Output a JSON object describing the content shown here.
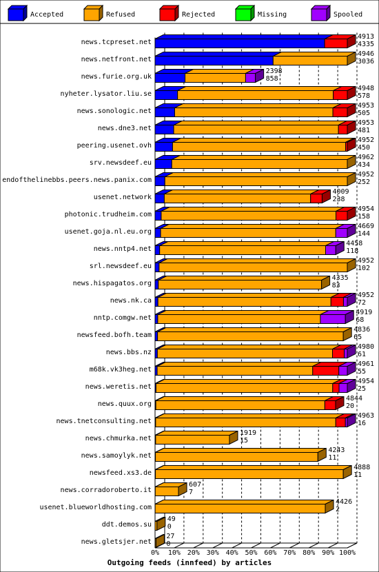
{
  "chart_data": {
    "type": "bar",
    "orientation": "horizontal",
    "stacked": true,
    "normalized_percent": true,
    "title": "Outgoing feeds (innfeed) by articles",
    "xlim": [
      0,
      100
    ],
    "x_ticks": [
      "0%",
      "10%",
      "20%",
      "30%",
      "40%",
      "50%",
      "60%",
      "70%",
      "80%",
      "90%",
      "100%"
    ],
    "grid": true,
    "legend_position": "top",
    "legend": [
      {
        "name": "Accepted",
        "color": "#0000ff"
      },
      {
        "name": "Refused",
        "color": "#ffa500"
      },
      {
        "name": "Rejected",
        "color": "#ff0000"
      },
      {
        "name": "Missing",
        "color": "#00ff00"
      },
      {
        "name": "Spooled",
        "color": "#a000ff"
      }
    ],
    "rows": [
      {
        "label": "news.tcpreset.net",
        "total": "4913",
        "accepted": "4335",
        "segments": [
          88.2,
          0,
          11.8,
          0,
          0
        ]
      },
      {
        "label": "news.netfront.net",
        "total": "4946",
        "accepted": "3036",
        "segments": [
          61.4,
          38.6,
          0,
          0,
          0
        ]
      },
      {
        "label": "news.furie.org.uk",
        "total": "2398",
        "accepted": "858",
        "segments": [
          15.6,
          31.5,
          0,
          0,
          5.1
        ]
      },
      {
        "label": "nyheter.lysator.liu.se",
        "total": "4948",
        "accepted": "578",
        "segments": [
          11.7,
          81.0,
          7.3,
          0,
          0
        ]
      },
      {
        "label": "news.sonologic.net",
        "total": "4953",
        "accepted": "505",
        "segments": [
          10.2,
          82.3,
          7.5,
          0,
          0
        ]
      },
      {
        "label": "news.dne3.net",
        "total": "4953",
        "accepted": "481",
        "segments": [
          9.7,
          85.7,
          4.6,
          0,
          0
        ]
      },
      {
        "label": "peering.usenet.ovh",
        "total": "4952",
        "accepted": "450",
        "segments": [
          9.1,
          90.0,
          0.9,
          0,
          0
        ]
      },
      {
        "label": "srv.newsdeef.eu",
        "total": "4962",
        "accepted": "434",
        "segments": [
          8.7,
          91.3,
          0,
          0,
          0
        ]
      },
      {
        "label": "endofthelinebbs.peers.news.panix.com",
        "total": "4952",
        "accepted": "252",
        "segments": [
          5.1,
          94.9,
          0,
          0,
          0
        ]
      },
      {
        "label": "usenet.network",
        "total": "4009",
        "accepted": "238",
        "segments": [
          4.8,
          76.1,
          6.0,
          0,
          0
        ]
      },
      {
        "label": "photonic.trudheim.com",
        "total": "4954",
        "accepted": "158",
        "segments": [
          3.2,
          90.9,
          5.9,
          0,
          0
        ]
      },
      {
        "label": "usenet.goja.nl.eu.org",
        "total": "4669",
        "accepted": "144",
        "segments": [
          2.9,
          91.1,
          0,
          0,
          6.0
        ]
      },
      {
        "label": "news.nntp4.net",
        "total": "4458",
        "accepted": "118",
        "segments": [
          2.4,
          86.3,
          0,
          0,
          5.3
        ]
      },
      {
        "label": "srl.newsdeef.eu",
        "total": "4952",
        "accepted": "102",
        "segments": [
          2.1,
          97.9,
          0,
          0,
          0
        ]
      },
      {
        "label": "news.hispagatos.org",
        "total": "4335",
        "accepted": "83",
        "segments": [
          1.7,
          84.9,
          0,
          0,
          0
        ]
      },
      {
        "label": "news.nk.ca",
        "total": "4952",
        "accepted": "72",
        "segments": [
          1.5,
          90.0,
          6.5,
          0,
          2.0
        ]
      },
      {
        "label": "nntp.comgw.net",
        "total": "4919",
        "accepted": "68",
        "segments": [
          1.4,
          84.6,
          0,
          0,
          13.0
        ]
      },
      {
        "label": "newsfeed.bofh.team",
        "total": "4836",
        "accepted": "65",
        "segments": [
          1.3,
          96.6,
          0,
          0,
          0
        ]
      },
      {
        "label": "news.bbs.nz",
        "total": "4980",
        "accepted": "61",
        "segments": [
          1.2,
          91.1,
          6.1,
          0,
          1.6
        ]
      },
      {
        "label": "m68k.vk3heg.net",
        "total": "4961",
        "accepted": "55",
        "segments": [
          1.1,
          80.9,
          13.6,
          0,
          4.4
        ]
      },
      {
        "label": "news.weretis.net",
        "total": "4954",
        "accepted": "25",
        "segments": [
          0.5,
          91.9,
          3.3,
          0,
          4.3
        ]
      },
      {
        "label": "news.quux.org",
        "total": "4844",
        "accepted": "20",
        "segments": [
          0.4,
          87.9,
          5.6,
          0,
          0
        ]
      },
      {
        "label": "news.tnetconsulting.net",
        "total": "4963",
        "accepted": "16",
        "segments": [
          0.3,
          93.7,
          5.0,
          0,
          1.0
        ]
      },
      {
        "label": "news.chmurka.net",
        "total": "1919",
        "accepted": "15",
        "segments": [
          0.3,
          38.4,
          0,
          0,
          0
        ]
      },
      {
        "label": "news.samoylyk.net",
        "total": "4243",
        "accepted": "11",
        "segments": [
          0.2,
          84.5,
          0,
          0,
          0
        ]
      },
      {
        "label": "newsfeed.xs3.de",
        "total": "4888",
        "accepted": "11",
        "segments": [
          0.2,
          97.7,
          0,
          0,
          0
        ]
      },
      {
        "label": "news.corradoroberto.it",
        "total": "607",
        "accepted": "7",
        "segments": [
          0.1,
          12.1,
          0,
          0,
          0
        ]
      },
      {
        "label": "usenet.blueworldhosting.com",
        "total": "4426",
        "accepted": "2",
        "segments": [
          0.04,
          88.5,
          0,
          0,
          0
        ]
      },
      {
        "label": "ddt.demos.su",
        "total": "49",
        "accepted": "0",
        "segments": [
          0,
          1.0,
          0,
          0,
          0
        ]
      },
      {
        "label": "news.gletsjer.net",
        "total": "27",
        "accepted": "0",
        "segments": [
          0,
          0.5,
          0,
          0,
          0
        ]
      }
    ]
  }
}
